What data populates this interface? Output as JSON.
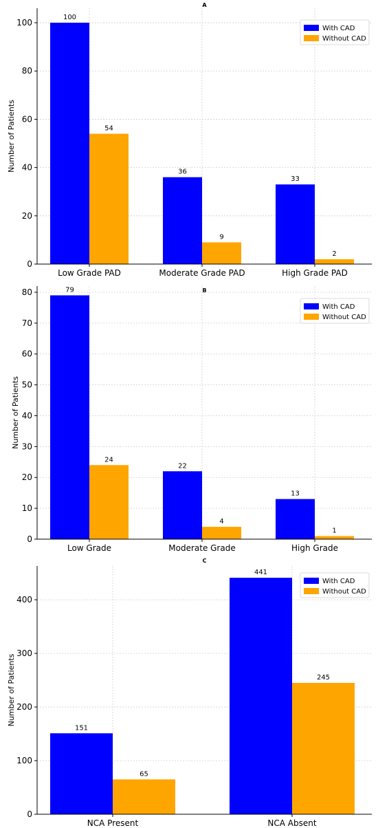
{
  "chart_data": [
    {
      "type": "bar",
      "title": "A",
      "xlabel": "",
      "ylabel": "Number of Patients",
      "categories": [
        "Low Grade PAD",
        "Moderate Grade PAD",
        "High Grade PAD"
      ],
      "series": [
        {
          "name": "With CAD",
          "color": "#0000ff",
          "values": [
            100,
            36,
            33
          ]
        },
        {
          "name": "Without CAD",
          "color": "#ffa500",
          "values": [
            54,
            9,
            2
          ]
        }
      ],
      "ylim": [
        0,
        106
      ],
      "yticks": [
        0,
        20,
        40,
        60,
        80,
        100
      ],
      "grid": true,
      "legend": "top-right"
    },
    {
      "type": "bar",
      "title": "B",
      "xlabel": "",
      "ylabel": "Number of Patients",
      "categories": [
        "Low Grade",
        "Moderate Grade",
        "High Grade"
      ],
      "series": [
        {
          "name": "With CAD",
          "color": "#0000ff",
          "values": [
            79,
            22,
            13
          ]
        },
        {
          "name": "Without CAD",
          "color": "#ffa500",
          "values": [
            24,
            4,
            1
          ]
        }
      ],
      "ylim": [
        0,
        82
      ],
      "yticks": [
        0,
        10,
        20,
        30,
        40,
        50,
        60,
        70,
        80
      ],
      "grid": true,
      "legend": "top-right"
    },
    {
      "type": "bar",
      "title": "C",
      "xlabel": "",
      "ylabel": "Number of Patients",
      "categories": [
        "NCA Present",
        "NCA Absent"
      ],
      "series": [
        {
          "name": "With CAD",
          "color": "#0000ff",
          "values": [
            151,
            441
          ]
        },
        {
          "name": "Without CAD",
          "color": "#ffa500",
          "values": [
            65,
            245
          ]
        }
      ],
      "ylim": [
        0,
        463
      ],
      "yticks": [
        0,
        100,
        200,
        300,
        400
      ],
      "grid": true,
      "legend": "top-right"
    }
  ]
}
